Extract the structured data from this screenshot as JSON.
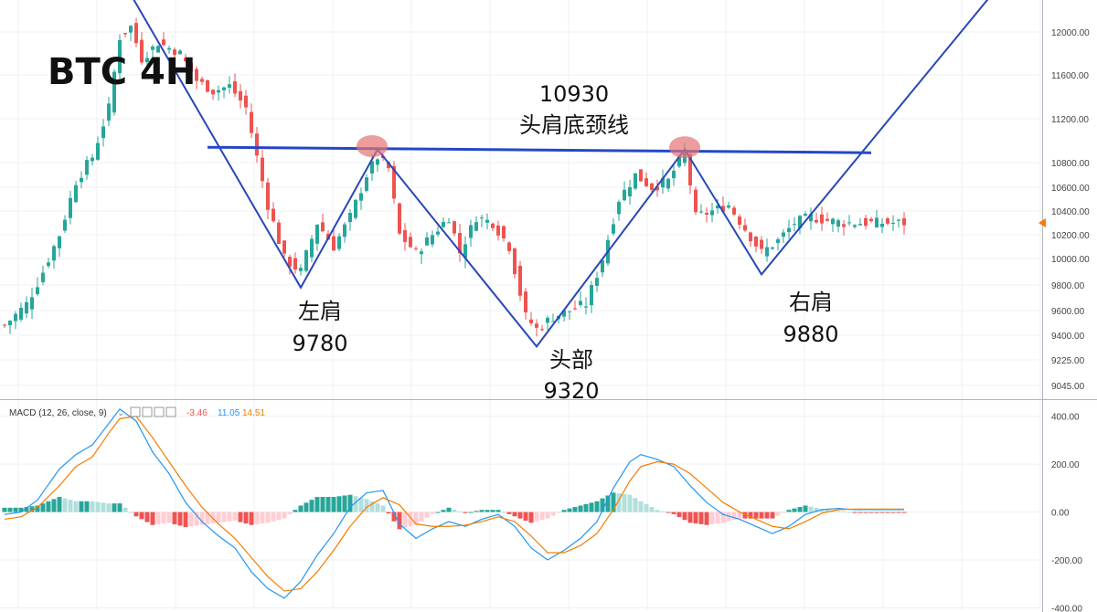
{
  "chart_data": {
    "type": "candlestick",
    "title": "BTC 4H",
    "price_axis": {
      "ticks": [
        "12000.00",
        "11600.00",
        "11200.00",
        "10800.00",
        "10600.00",
        "10400.00",
        "10200.00",
        "10000.00",
        "9800.00",
        "9600.00",
        "9400.00",
        "9225.00",
        "9045.00"
      ],
      "tick_values": [
        12000,
        11600,
        11200,
        10800,
        10600,
        10400,
        10200,
        10000,
        9800,
        9600,
        9400,
        9225,
        9045
      ],
      "ylim": [
        8960,
        12350
      ],
      "last_price_marker_color": "#f57c00"
    },
    "annotations": {
      "neckline_value": "10930",
      "neckline_label": "头肩底颈线",
      "left_shoulder_label": "左肩",
      "left_shoulder_value": "9780",
      "head_label": "头部",
      "head_value": "9320",
      "right_shoulder_label": "右肩",
      "right_shoulder_value": "9880"
    },
    "pattern_points": [
      {
        "bar": 23,
        "price": 12350
      },
      {
        "bar": 54,
        "price": 9780
      },
      {
        "bar": 68,
        "price": 10920
      },
      {
        "bar": 97,
        "price": 9320
      },
      {
        "bar": 124,
        "price": 10920
      },
      {
        "bar": 138,
        "price": 9880
      },
      {
        "bar": 180,
        "price": 12350
      }
    ],
    "neckline": {
      "from_bar": 37,
      "to_bar": 158,
      "price_start": 10940,
      "price_end": 10890
    },
    "highlight_circles": [
      {
        "bar": 67,
        "price": 10950
      },
      {
        "bar": 124,
        "price": 10940
      }
    ],
    "candles_anchor_closes": [
      [
        0,
        9480
      ],
      [
        4,
        9650
      ],
      [
        7,
        9900
      ],
      [
        10,
        10200
      ],
      [
        13,
        10650
      ],
      [
        16,
        10850
      ],
      [
        19,
        11300
      ],
      [
        21,
        11950
      ],
      [
        23,
        12050
      ],
      [
        25,
        11750
      ],
      [
        28,
        11900
      ],
      [
        32,
        11800
      ],
      [
        35,
        11550
      ],
      [
        38,
        11450
      ],
      [
        41,
        11500
      ],
      [
        44,
        11300
      ],
      [
        46,
        10850
      ],
      [
        48,
        10450
      ],
      [
        51,
        10000
      ],
      [
        54,
        9900
      ],
      [
        57,
        10300
      ],
      [
        60,
        10100
      ],
      [
        63,
        10350
      ],
      [
        66,
        10700
      ],
      [
        68,
        10850
      ],
      [
        70,
        10750
      ],
      [
        72,
        10200
      ],
      [
        75,
        10050
      ],
      [
        78,
        10200
      ],
      [
        81,
        10350
      ],
      [
        83,
        10050
      ],
      [
        86,
        10350
      ],
      [
        89,
        10300
      ],
      [
        92,
        10100
      ],
      [
        95,
        9550
      ],
      [
        97,
        9450
      ],
      [
        100,
        9550
      ],
      [
        103,
        9600
      ],
      [
        106,
        9650
      ],
      [
        109,
        10000
      ],
      [
        112,
        10500
      ],
      [
        115,
        10700
      ],
      [
        118,
        10600
      ],
      [
        121,
        10650
      ],
      [
        124,
        10900
      ],
      [
        126,
        10350
      ],
      [
        129,
        10400
      ],
      [
        132,
        10450
      ],
      [
        135,
        10250
      ],
      [
        138,
        10050
      ],
      [
        141,
        10150
      ],
      [
        144,
        10300
      ],
      [
        147,
        10350
      ],
      [
        150,
        10320
      ],
      [
        153,
        10300
      ]
    ],
    "macd": {
      "label": "MACD (12, 26, close, 9)",
      "values": [
        "-3.46",
        "11.05",
        "14.51"
      ],
      "value_colors": [
        "#ef5350",
        "#2196f3",
        "#f57c00"
      ],
      "ticks": [
        "400.00",
        "200.00",
        "0.00",
        "-200.00",
        "-400.00"
      ],
      "tick_values": [
        400,
        200,
        0,
        -200,
        -400
      ],
      "ylim": [
        -410,
        460
      ],
      "macd_anchor_values": [
        [
          0,
          -10
        ],
        [
          3,
          0
        ],
        [
          6,
          50
        ],
        [
          10,
          180
        ],
        [
          13,
          240
        ],
        [
          16,
          280
        ],
        [
          19,
          370
        ],
        [
          21,
          430
        ],
        [
          24,
          380
        ],
        [
          27,
          250
        ],
        [
          30,
          160
        ],
        [
          33,
          40
        ],
        [
          36,
          -40
        ],
        [
          39,
          -100
        ],
        [
          42,
          -150
        ],
        [
          45,
          -250
        ],
        [
          48,
          -320
        ],
        [
          51,
          -360
        ],
        [
          54,
          -290
        ],
        [
          57,
          -180
        ],
        [
          60,
          -90
        ],
        [
          63,
          20
        ],
        [
          66,
          80
        ],
        [
          69,
          90
        ],
        [
          72,
          -50
        ],
        [
          75,
          -110
        ],
        [
          78,
          -70
        ],
        [
          81,
          -40
        ],
        [
          84,
          -60
        ],
        [
          87,
          -30
        ],
        [
          90,
          -10
        ],
        [
          93,
          -60
        ],
        [
          96,
          -150
        ],
        [
          99,
          -200
        ],
        [
          102,
          -160
        ],
        [
          105,
          -110
        ],
        [
          108,
          -40
        ],
        [
          111,
          100
        ],
        [
          114,
          210
        ],
        [
          116,
          240
        ],
        [
          119,
          220
        ],
        [
          122,
          190
        ],
        [
          125,
          110
        ],
        [
          128,
          40
        ],
        [
          131,
          -10
        ],
        [
          134,
          -30
        ],
        [
          137,
          -60
        ],
        [
          140,
          -90
        ],
        [
          143,
          -60
        ],
        [
          146,
          -10
        ],
        [
          149,
          10
        ],
        [
          152,
          15
        ],
        [
          155,
          10
        ]
      ],
      "signal_anchor_values": [
        [
          0,
          -30
        ],
        [
          3,
          -20
        ],
        [
          6,
          20
        ],
        [
          10,
          110
        ],
        [
          13,
          190
        ],
        [
          16,
          230
        ],
        [
          19,
          330
        ],
        [
          21,
          390
        ],
        [
          24,
          400
        ],
        [
          27,
          310
        ],
        [
          30,
          210
        ],
        [
          33,
          110
        ],
        [
          36,
          20
        ],
        [
          39,
          -50
        ],
        [
          42,
          -110
        ],
        [
          45,
          -190
        ],
        [
          48,
          -270
        ],
        [
          51,
          -330
        ],
        [
          54,
          -320
        ],
        [
          57,
          -250
        ],
        [
          60,
          -160
        ],
        [
          63,
          -60
        ],
        [
          66,
          20
        ],
        [
          69,
          60
        ],
        [
          72,
          30
        ],
        [
          75,
          -50
        ],
        [
          78,
          -60
        ],
        [
          81,
          -60
        ],
        [
          84,
          -55
        ],
        [
          87,
          -40
        ],
        [
          90,
          -20
        ],
        [
          93,
          -40
        ],
        [
          96,
          -100
        ],
        [
          99,
          -170
        ],
        [
          102,
          -170
        ],
        [
          105,
          -140
        ],
        [
          108,
          -90
        ],
        [
          111,
          10
        ],
        [
          114,
          130
        ],
        [
          116,
          190
        ],
        [
          119,
          210
        ],
        [
          122,
          200
        ],
        [
          125,
          160
        ],
        [
          128,
          100
        ],
        [
          131,
          40
        ],
        [
          134,
          0
        ],
        [
          137,
          -30
        ],
        [
          140,
          -60
        ],
        [
          143,
          -70
        ],
        [
          146,
          -40
        ],
        [
          149,
          -5
        ],
        [
          152,
          10
        ],
        [
          155,
          12
        ]
      ]
    },
    "colors": {
      "up": "#26a69a",
      "down": "#ef5350",
      "pattern_line": "#2747b8",
      "neckline": "#2447c8",
      "circle": "#e57373",
      "macd_line": "#2196f3",
      "signal_line": "#f57c00",
      "hist_up_strong": "#26a69a",
      "hist_up_weak": "#b2dfdb",
      "hist_down_strong": "#ef5350",
      "hist_down_weak": "#ffcdd2"
    }
  }
}
